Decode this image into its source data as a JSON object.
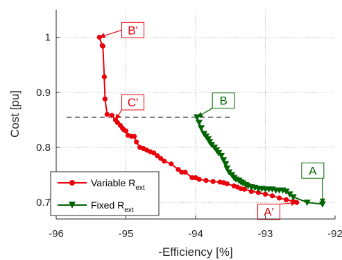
{
  "chart_data": {
    "type": "line",
    "title": "",
    "xlabel": "-Efficiency [%]",
    "ylabel": "Cost [pu]",
    "xlim": [
      -96,
      -92
    ],
    "ylim": [
      0.67,
      1.05
    ],
    "xticks": [
      -96,
      -95,
      -94,
      -93,
      -92
    ],
    "yticks": [
      0.7,
      0.8,
      0.9,
      1
    ],
    "xtick_labels": [
      "-96",
      "-95",
      "-94",
      "-93",
      "-92"
    ],
    "ytick_labels": [
      "0.7",
      "0.8",
      "0.9",
      "1"
    ],
    "grid": "dotted",
    "legend_position": "bottom-left",
    "colors": {
      "variable": "#e8000b",
      "fixed": "#006400",
      "reference": "#000000"
    },
    "series": [
      {
        "name": "Variable R",
        "name_subscript": "ext",
        "marker": "circle",
        "color": "#e8000b",
        "x": [
          -95.38,
          -95.34,
          -95.33,
          -95.31,
          -95.3,
          -95.27,
          -95.2,
          -95.15,
          -95.12,
          -95.08,
          -95.05,
          -95.03,
          -95.0,
          -94.97,
          -94.92,
          -94.88,
          -94.85,
          -94.8,
          -94.75,
          -94.7,
          -94.65,
          -94.6,
          -94.55,
          -94.5,
          -94.45,
          -94.35,
          -94.25,
          -94.2,
          -94.15,
          -94.05,
          -94.0,
          -93.95,
          -93.85,
          -93.75,
          -93.65,
          -93.6,
          -93.55,
          -93.45,
          -93.4,
          -93.35,
          -93.3,
          -93.2,
          -93.1,
          -93.0,
          -92.9,
          -92.8,
          -92.7,
          -92.6,
          -92.55
        ],
        "y": [
          1.0,
          0.985,
          0.984,
          0.928,
          0.888,
          0.86,
          0.858,
          0.85,
          0.845,
          0.84,
          0.835,
          0.832,
          0.83,
          0.822,
          0.82,
          0.82,
          0.81,
          0.8,
          0.798,
          0.795,
          0.792,
          0.79,
          0.785,
          0.78,
          0.775,
          0.77,
          0.76,
          0.755,
          0.755,
          0.745,
          0.745,
          0.742,
          0.74,
          0.738,
          0.737,
          0.736,
          0.734,
          0.73,
          0.728,
          0.725,
          0.724,
          0.72,
          0.718,
          0.715,
          0.712,
          0.708,
          0.705,
          0.702,
          0.7
        ]
      },
      {
        "name": "Fixed R",
        "name_subscript": "ext",
        "marker": "triangle-down",
        "color": "#006400",
        "x": [
          -93.98,
          -93.95,
          -93.92,
          -93.88,
          -93.85,
          -93.82,
          -93.8,
          -93.77,
          -93.73,
          -93.7,
          -93.67,
          -93.63,
          -93.6,
          -93.57,
          -93.55,
          -93.52,
          -93.48,
          -93.45,
          -93.42,
          -93.38,
          -93.35,
          -93.32,
          -93.28,
          -93.25,
          -93.2,
          -93.15,
          -93.1,
          -93.05,
          -93.0,
          -92.95,
          -92.9,
          -92.85,
          -92.8,
          -92.75,
          -92.7,
          -92.65,
          -92.6,
          -92.4,
          -92.18
        ],
        "y": [
          0.855,
          0.845,
          0.835,
          0.825,
          0.82,
          0.815,
          0.81,
          0.805,
          0.8,
          0.795,
          0.79,
          0.785,
          0.777,
          0.77,
          0.762,
          0.755,
          0.75,
          0.745,
          0.742,
          0.74,
          0.737,
          0.735,
          0.732,
          0.73,
          0.728,
          0.727,
          0.725,
          0.725,
          0.724,
          0.724,
          0.724,
          0.722,
          0.722,
          0.722,
          0.72,
          0.715,
          0.71,
          0.7,
          0.697
        ]
      }
    ],
    "reference_line": {
      "y": 0.855,
      "x_from": -95.85,
      "x_to": -93.5,
      "style": "dashed"
    },
    "annotations": [
      {
        "label": "B'",
        "color": "#e8000b",
        "box_x": -94.9,
        "box_y": 1.013,
        "point_x": -95.38,
        "point_y": 1.0
      },
      {
        "label": "C'",
        "color": "#e8000b",
        "box_x": -94.9,
        "box_y": 0.882,
        "point_x": -95.15,
        "point_y": 0.85
      },
      {
        "label": "B",
        "color": "#006400",
        "box_x": -93.6,
        "box_y": 0.885,
        "point_x": -93.98,
        "point_y": 0.855
      },
      {
        "label": "A'",
        "color": "#e8000b",
        "box_x": -92.95,
        "box_y": 0.683,
        "point_x": -92.55,
        "point_y": 0.7
      },
      {
        "label": "A",
        "color": "#006400",
        "box_x": -92.32,
        "box_y": 0.758,
        "point_x": -92.18,
        "point_y": 0.697
      }
    ]
  }
}
